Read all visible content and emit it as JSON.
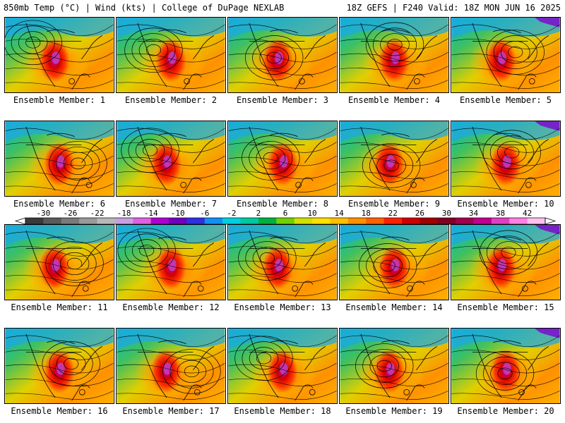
{
  "header": {
    "left": "850mb Temp (°C) | Wind (kts) | College of DuPage NEXLAB",
    "right": "18Z GEFS | F240 Valid: 18Z MON JUN 16 2025"
  },
  "members": [
    {
      "label": "Ensemble Member: 1"
    },
    {
      "label": "Ensemble Member: 2"
    },
    {
      "label": "Ensemble Member: 3"
    },
    {
      "label": "Ensemble Member: 4"
    },
    {
      "label": "Ensemble Member: 5"
    },
    {
      "label": "Ensemble Member: 6"
    },
    {
      "label": "Ensemble Member: 7"
    },
    {
      "label": "Ensemble Member: 8"
    },
    {
      "label": "Ensemble Member: 9"
    },
    {
      "label": "Ensemble Member: 10"
    },
    {
      "label": "Ensemble Member: 11"
    },
    {
      "label": "Ensemble Member: 12"
    },
    {
      "label": "Ensemble Member: 13"
    },
    {
      "label": "Ensemble Member: 14"
    },
    {
      "label": "Ensemble Member: 15"
    },
    {
      "label": "Ensemble Member: 16"
    },
    {
      "label": "Ensemble Member: 17"
    },
    {
      "label": "Ensemble Member: 18"
    },
    {
      "label": "Ensemble Member: 19"
    },
    {
      "label": "Ensemble Member: 20"
    }
  ],
  "colorbar": {
    "ticks": [
      "-30",
      "-26",
      "-22",
      "-18",
      "-14",
      "-10",
      "-6",
      "-2",
      "2",
      "6",
      "10",
      "14",
      "18",
      "22",
      "26",
      "30",
      "34",
      "38",
      "42"
    ],
    "colors": [
      "#3a3a3a",
      "#5a5a5a",
      "#7a7a7a",
      "#9a9a9a",
      "#b8b8b8",
      "#c8a0e0",
      "#e060e0",
      "#b000d0",
      "#7000c0",
      "#3030e0",
      "#1090f0",
      "#00d0e0",
      "#00c8a0",
      "#00b040",
      "#70d000",
      "#d0e000",
      "#ffe000",
      "#ffc000",
      "#ff9000",
      "#ff6000",
      "#ff2000",
      "#d00000",
      "#a00000",
      "#800020",
      "#a00050",
      "#c00090",
      "#e040c0",
      "#ff80e0",
      "#ffc0f0"
    ]
  }
}
